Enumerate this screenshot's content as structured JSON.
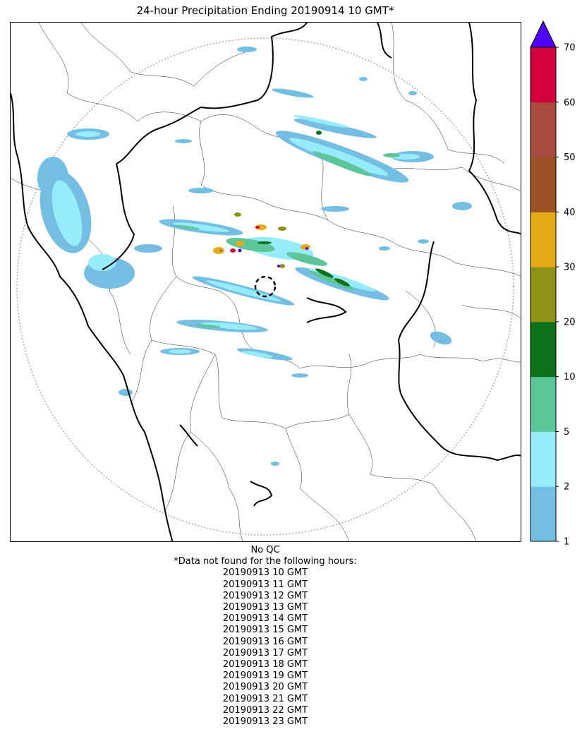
{
  "title": "24-hour Precipitation Ending 20190914 10 GMT*",
  "colorbar": {
    "ticks": [
      "1",
      "2",
      "5",
      "10",
      "20",
      "30",
      "40",
      "50",
      "60",
      "70"
    ],
    "colors": [
      "#74bde3",
      "#96ecfb",
      "#5cc59a",
      "#0d7119",
      "#8b9215",
      "#e6a917",
      "#9d5225",
      "#a74b40",
      "#d4013f"
    ],
    "extend_color": "#4f00ff"
  },
  "footer": {
    "qc_note": "No QC",
    "missing_header": "*Data not found for the following hours:",
    "missing_hours": [
      "20190913 10 GMT",
      "20190913 11 GMT",
      "20190913 12 GMT",
      "20190913 13 GMT",
      "20190913 14 GMT",
      "20190913 15 GMT",
      "20190913 16 GMT",
      "20190913 17 GMT",
      "20190913 18 GMT",
      "20190913 19 GMT",
      "20190913 20 GMT",
      "20190913 21 GMT",
      "20190913 22 GMT",
      "20190913 23 GMT"
    ]
  }
}
